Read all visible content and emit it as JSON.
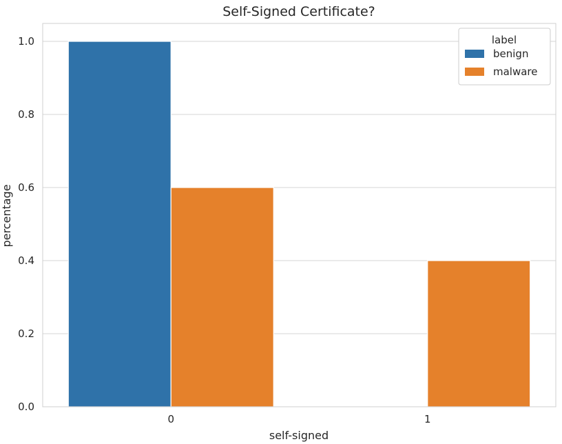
{
  "chart_data": {
    "type": "bar",
    "title": "Self-Signed Certificate?",
    "xlabel": "self-signed",
    "ylabel": "percentage",
    "categories": [
      "0",
      "1"
    ],
    "series": [
      {
        "name": "benign",
        "values": [
          1.0,
          0.0
        ]
      },
      {
        "name": "malware",
        "values": [
          0.6,
          0.4
        ]
      }
    ],
    "ylim": [
      0,
      1.05
    ],
    "yticks": [
      "0.0",
      "0.2",
      "0.4",
      "0.6",
      "0.8",
      "1.0"
    ],
    "ytick_values": [
      0,
      0.2,
      0.4,
      0.6,
      0.8,
      1.0
    ],
    "grid": true,
    "legend": {
      "title": "label",
      "placement": "top-right"
    },
    "colors": {
      "benign": "#2f72a9",
      "malware": "#e5812b"
    }
  }
}
